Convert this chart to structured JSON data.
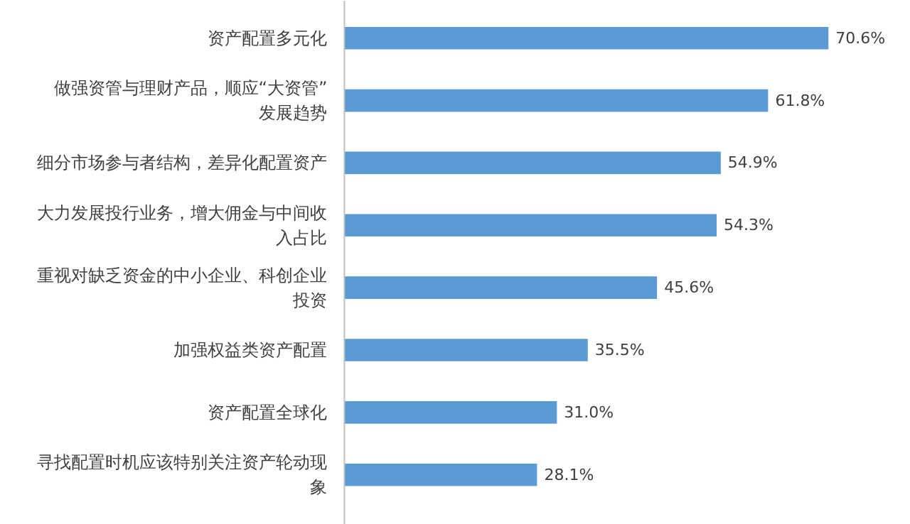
{
  "chart_data": {
    "type": "bar",
    "orientation": "horizontal",
    "categories": [
      "资产配置多元化",
      "做强资管与理财产品，顺应“大资管”发展趋势",
      "细分市场参与者结构，差异化配置资产",
      "大力发展投行业务，增大佣金与中间收入占比",
      "重视对缺乏资金的中小企业、科创企业投资",
      "加强权益类资产配置",
      "资产配置全球化",
      "寻找配置时机应该特别关注资产轮动现象"
    ],
    "values": [
      70.6,
      61.8,
      54.9,
      54.3,
      45.6,
      35.5,
      31.0,
      28.1
    ],
    "value_labels": [
      "70.6%",
      "61.8%",
      "54.9%",
      "54.3%",
      "45.6%",
      "35.5%",
      "31.0%",
      "28.1%"
    ],
    "color": "#5b9bd5"
  }
}
